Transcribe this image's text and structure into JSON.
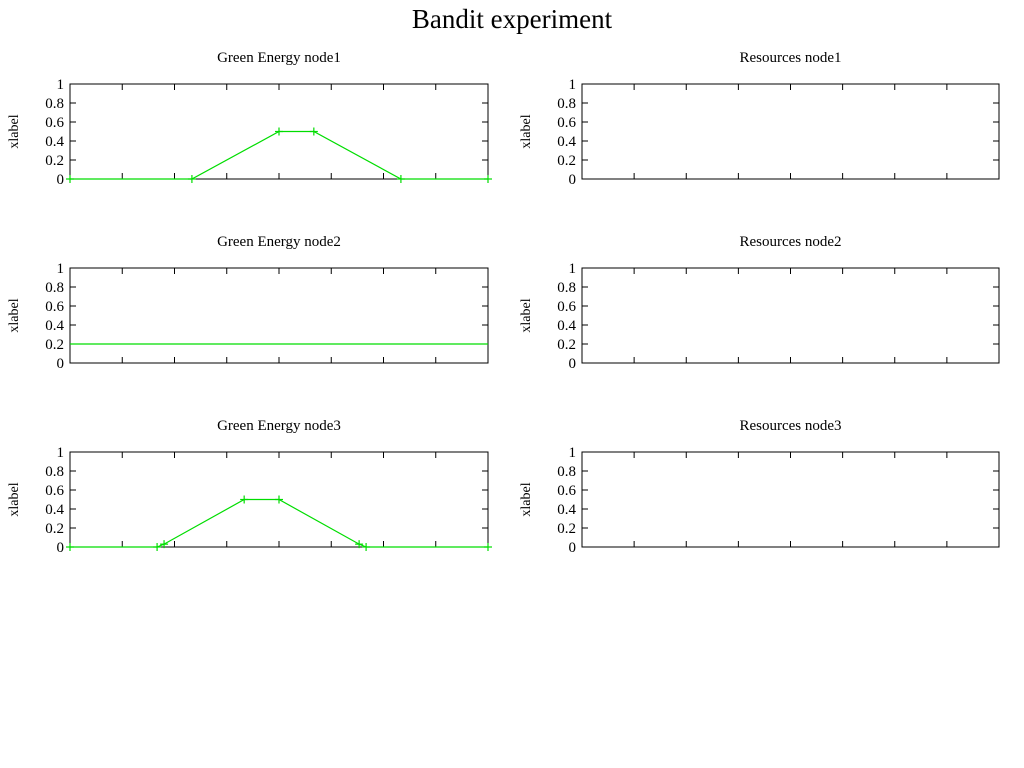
{
  "figure": {
    "title": "Bandit experiment"
  },
  "chart_data": [
    {
      "type": "line",
      "title": "Green Energy node1",
      "xlabel": "",
      "ylabel": "xlabel",
      "xlim": [
        0,
        12
      ],
      "ylim": [
        0,
        1
      ],
      "yticks": [
        "0",
        "0.2",
        "0.4",
        "0.6",
        "0.8",
        "1"
      ],
      "xticks_count": 9,
      "grid": false,
      "color": "#00dd00",
      "series": [
        {
          "x": [
            0,
            3.5,
            6,
            7,
            9.5,
            12
          ],
          "y": [
            0,
            0,
            0.5,
            0.5,
            0,
            0
          ]
        }
      ]
    },
    {
      "type": "line",
      "title": "Resources node1",
      "xlabel": "",
      "ylabel": "xlabel",
      "xlim": [
        0,
        12
      ],
      "ylim": [
        0,
        1
      ],
      "yticks": [
        "0",
        "0.2",
        "0.4",
        "0.6",
        "0.8",
        "1"
      ],
      "xticks_count": 9,
      "grid": false,
      "series": []
    },
    {
      "type": "line",
      "title": "Green Energy node2",
      "xlabel": "",
      "ylabel": "xlabel",
      "xlim": [
        0,
        12
      ],
      "ylim": [
        0,
        1
      ],
      "yticks": [
        "0",
        "0.2",
        "0.4",
        "0.6",
        "0.8",
        "1"
      ],
      "xticks_count": 9,
      "grid": false,
      "color": "#00dd00",
      "series": [
        {
          "x": [
            0,
            12
          ],
          "y": [
            0.2,
            0.2
          ],
          "markers": false
        }
      ]
    },
    {
      "type": "line",
      "title": "Resources node2",
      "xlabel": "",
      "ylabel": "xlabel",
      "xlim": [
        0,
        12
      ],
      "ylim": [
        0,
        1
      ],
      "yticks": [
        "0",
        "0.2",
        "0.4",
        "0.6",
        "0.8",
        "1"
      ],
      "xticks_count": 9,
      "grid": false,
      "series": []
    },
    {
      "type": "line",
      "title": "Green Energy node3",
      "xlabel": "",
      "ylabel": "xlabel",
      "xlim": [
        0,
        12
      ],
      "ylim": [
        0,
        1
      ],
      "yticks": [
        "0",
        "0.2",
        "0.4",
        "0.6",
        "0.8",
        "1"
      ],
      "xticks_count": 9,
      "grid": false,
      "color": "#00dd00",
      "series": [
        {
          "x": [
            0,
            2.5,
            2.7,
            5,
            6,
            8.3,
            8.5,
            12
          ],
          "y": [
            0,
            0,
            0.03,
            0.5,
            0.5,
            0.03,
            0,
            0
          ]
        }
      ]
    },
    {
      "type": "line",
      "title": "Resources node3",
      "xlabel": "",
      "ylabel": "xlabel",
      "xlim": [
        0,
        12
      ],
      "ylim": [
        0,
        1
      ],
      "yticks": [
        "0",
        "0.2",
        "0.4",
        "0.6",
        "0.8",
        "1"
      ],
      "xticks_count": 9,
      "grid": false,
      "series": []
    }
  ]
}
